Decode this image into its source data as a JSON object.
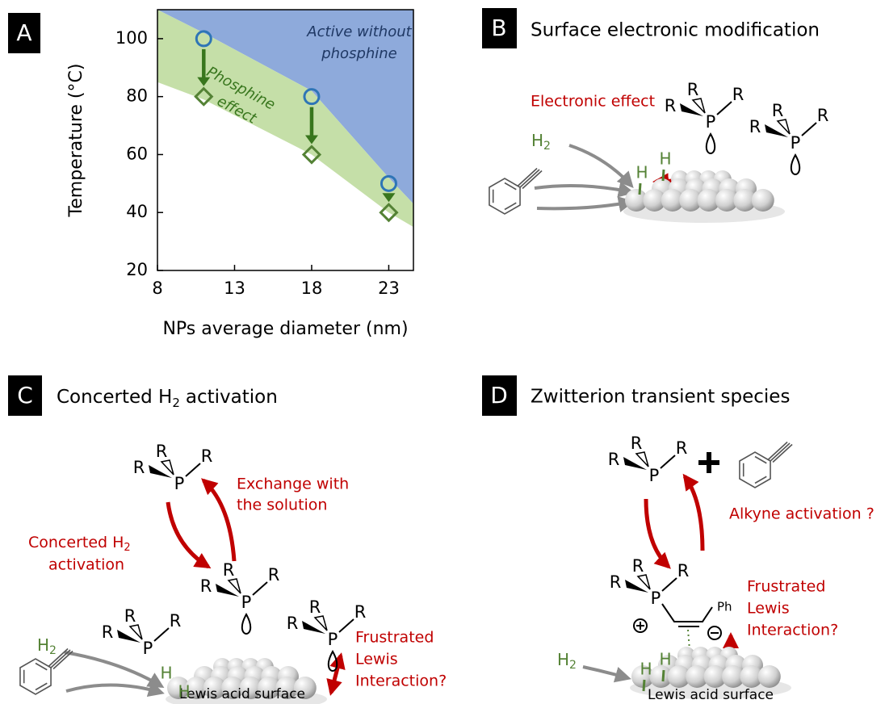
{
  "chart_data": {
    "type": "scatter",
    "x_label": "NPs average diameter (nm)",
    "y_label": "Temperature (°C)",
    "xlim": [
      8,
      24.6
    ],
    "ylim": [
      20,
      110
    ],
    "xticks": [
      8,
      13,
      18,
      23
    ],
    "yticks": [
      20,
      40,
      60,
      80,
      100
    ],
    "x": [
      11,
      18,
      23
    ],
    "series": [
      {
        "marker": "circle",
        "color": "#2e75b6",
        "values": [
          100,
          80,
          50
        ]
      },
      {
        "marker": "diamond",
        "color": "#548235",
        "values": [
          80,
          60,
          40
        ]
      }
    ],
    "arrow_color": "#38761d",
    "regions": [
      {
        "label_lines": [
          "Active without",
          "phosphine"
        ],
        "color": "#8eaadb",
        "text_color": "#1f3864",
        "x": [
          8,
          11,
          18,
          23,
          24.6
        ],
        "lower": [
          110,
          102,
          82,
          52,
          43
        ]
      },
      {
        "label_lines": [
          "Phosphine",
          "effect"
        ],
        "color": "#c5dfa8",
        "text_color": "#38761d",
        "x": [
          8,
          11,
          18,
          23,
          24.6
        ],
        "upper": [
          110,
          102,
          82,
          52,
          43
        ],
        "lower": [
          85,
          79,
          60,
          40,
          35
        ]
      }
    ]
  },
  "panels": {
    "a": {
      "label": "A"
    },
    "b": {
      "label": "B",
      "title": "Surface electronic modification",
      "annotation": "Electronic effect"
    },
    "c": {
      "label": "C",
      "title": {
        "before": "Concerted H",
        "sub": "2",
        "after": "activation"
      },
      "exchange": [
        "Exchange with",
        "the solution"
      ],
      "concerted": {
        "line1": "Concerted H",
        "sub": "2",
        "line2": "activation"
      },
      "flp": [
        "Frustrated",
        "Lewis",
        "Interaction?"
      ],
      "surface": "Lewis acid surface"
    },
    "d": {
      "label": "D",
      "title": "Zwitterion transient species",
      "activation": "Alkyne activation ?",
      "flp": [
        "Frustrated",
        "Lewis",
        "Interaction?"
      ],
      "substituent": "Ph",
      "surface": "Lewis acid surface"
    }
  },
  "chemistry": {
    "phosphorus": "P",
    "substituent": "R",
    "hydrogen": "H",
    "h2_subscript": "2"
  }
}
